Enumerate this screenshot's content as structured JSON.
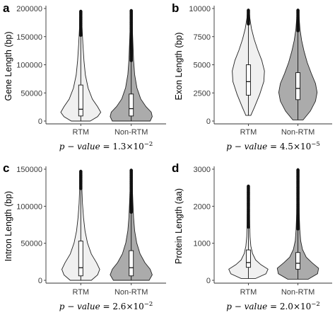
{
  "colors": {
    "rtm_fill": "#f0f0f0",
    "nonrtm_fill": "#ababab",
    "outline": "#222222"
  },
  "chart_data": [
    {
      "panel": "a",
      "type": "violin",
      "ylabel": "Gene Length (bp)",
      "ylim": [
        0,
        200000
      ],
      "yticks": [
        0,
        50000,
        100000,
        150000,
        200000
      ],
      "categories": [
        "RTM",
        "Non-RTM"
      ],
      "p_value": {
        "prefix": "p − value = 1.3×10",
        "exp": "−2"
      },
      "series": [
        {
          "category": "RTM",
          "min": 0,
          "q1": 9000,
          "median": 21000,
          "q3": 64000,
          "whisker_high": 150000,
          "max": 195000
        },
        {
          "category": "Non-RTM",
          "min": 0,
          "q1": 9000,
          "median": 22000,
          "q3": 48000,
          "whisker_high": 105000,
          "max": 197000
        }
      ]
    },
    {
      "panel": "b",
      "type": "violin",
      "ylabel": "Exon Length (bp)",
      "ylim": [
        0,
        10000
      ],
      "yticks": [
        0,
        2500,
        5000,
        7500,
        10000
      ],
      "categories": [
        "RTM",
        "Non-RTM"
      ],
      "p_value": {
        "prefix": "p − value = 4.5×10",
        "exp": "−5"
      },
      "series": [
        {
          "category": "RTM",
          "min": 500,
          "q1": 2300,
          "median": 3500,
          "q3": 5000,
          "whisker_high": 8500,
          "max": 9900
        },
        {
          "category": "Non-RTM",
          "min": 100,
          "q1": 1900,
          "median": 2900,
          "q3": 4300,
          "whisker_high": 7900,
          "max": 9900
        }
      ]
    },
    {
      "panel": "c",
      "type": "violin",
      "ylabel": "Intron Length (bp)",
      "ylim": [
        0,
        150000
      ],
      "yticks": [
        0,
        50000,
        100000,
        150000
      ],
      "categories": [
        "RTM",
        "Non-RTM"
      ],
      "p_value": {
        "prefix": "p − value = 2.6×10",
        "exp": "−2"
      },
      "series": [
        {
          "category": "RTM",
          "min": 0,
          "q1": 6000,
          "median": 17000,
          "q3": 53000,
          "whisker_high": 122000,
          "max": 148000
        },
        {
          "category": "Non-RTM",
          "min": 0,
          "q1": 6000,
          "median": 17000,
          "q3": 40000,
          "whisker_high": 90000,
          "max": 149000
        }
      ]
    },
    {
      "panel": "d",
      "type": "violin",
      "ylabel": "Protein Length (aa)",
      "ylim": [
        0,
        3000
      ],
      "yticks": [
        0,
        1000,
        2000,
        3000
      ],
      "categories": [
        "RTM",
        "Non-RTM"
      ],
      "p_value": {
        "prefix": "p − value = 2.0×10",
        "exp": "−2"
      },
      "series": [
        {
          "category": "RTM",
          "min": 50,
          "q1": 350,
          "median": 480,
          "q3": 820,
          "whisker_high": 1400,
          "max": 2550
        },
        {
          "category": "Non-RTM",
          "min": 30,
          "q1": 300,
          "median": 460,
          "q3": 750,
          "whisker_high": 1350,
          "max": 3000
        }
      ]
    }
  ]
}
